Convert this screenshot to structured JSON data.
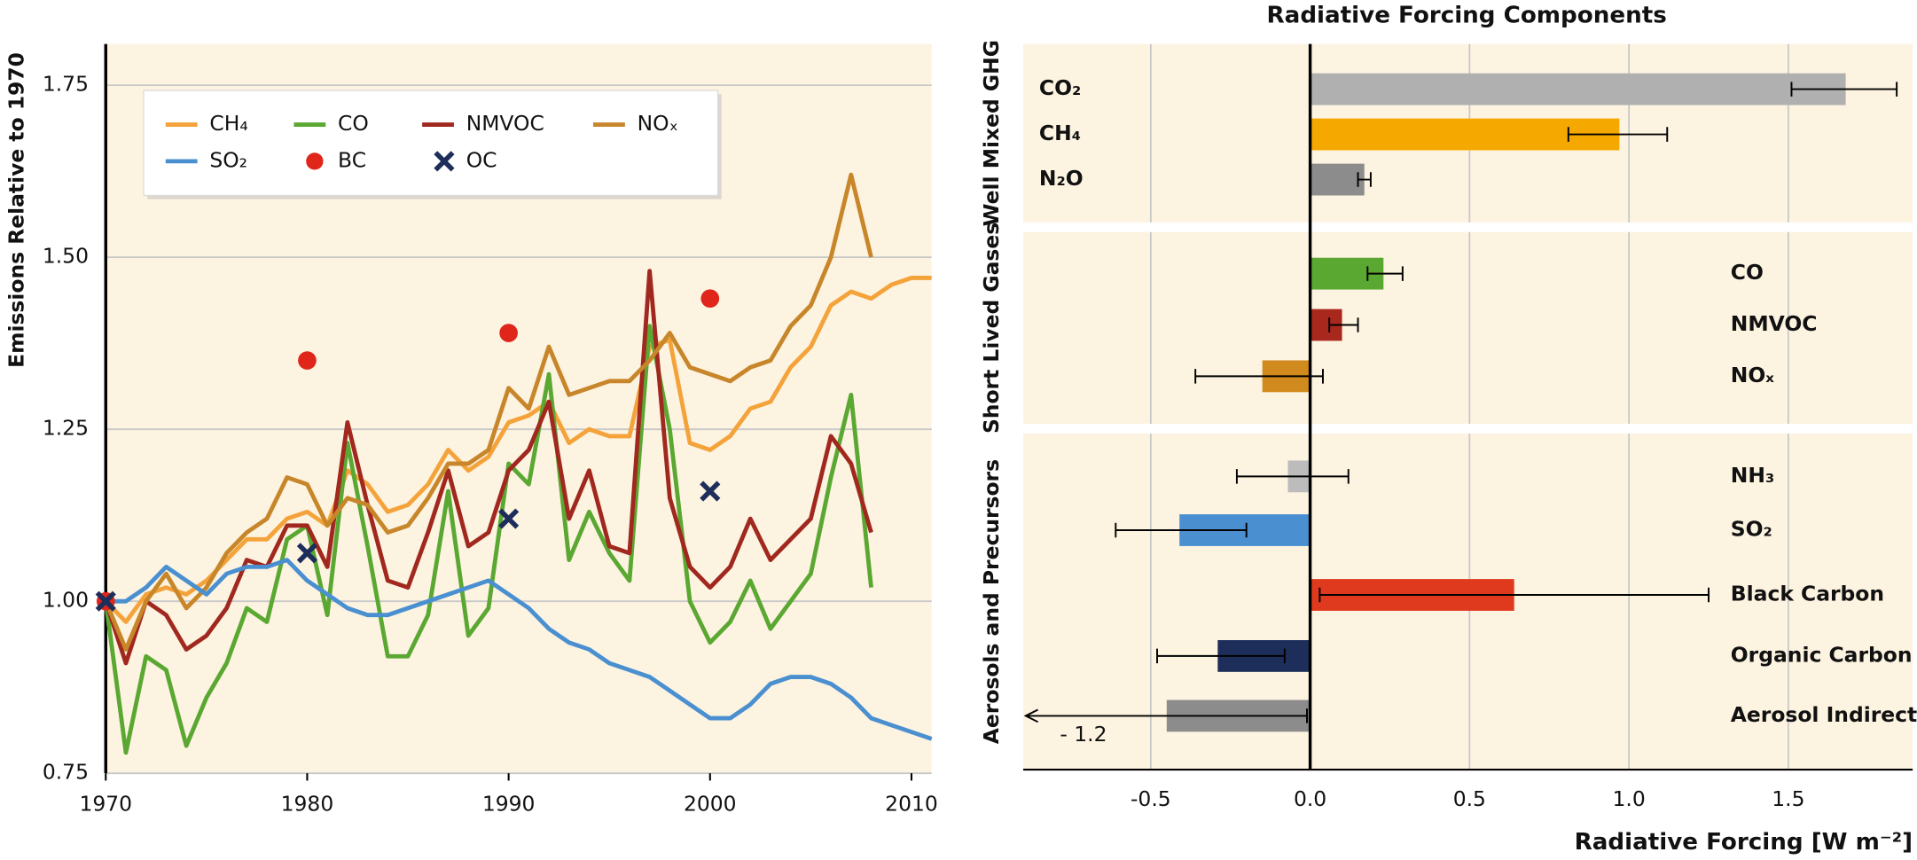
{
  "chart_data": [
    {
      "type": "line",
      "ylabel": "Emissions Relative to 1970",
      "x": [
        1970,
        1971,
        1972,
        1973,
        1974,
        1975,
        1976,
        1977,
        1978,
        1979,
        1980,
        1981,
        1982,
        1983,
        1984,
        1985,
        1986,
        1987,
        1988,
        1989,
        1990,
        1991,
        1992,
        1993,
        1994,
        1995,
        1996,
        1997,
        1998,
        1999,
        2000,
        2001,
        2002,
        2003,
        2004,
        2005,
        2006,
        2007,
        2008,
        2009,
        2010,
        2011
      ],
      "xlim": [
        1970,
        2011
      ],
      "xticks": [
        1970,
        1980,
        1990,
        2000,
        2010
      ],
      "ylim": [
        0.75,
        1.81
      ],
      "yticks": [
        0.75,
        1.25,
        {
          "value": 1.0,
          "label": "1.00"
        },
        {
          "value": 1.5,
          "label": "1.50"
        },
        1.75
      ],
      "grid": true,
      "legend": "upper left",
      "series": [
        {
          "name": "CH₄",
          "color": "#f4a33a",
          "values": [
            1.0,
            0.97,
            1.01,
            1.02,
            1.01,
            1.03,
            1.06,
            1.09,
            1.09,
            1.12,
            1.13,
            1.11,
            1.19,
            1.17,
            1.13,
            1.14,
            1.17,
            1.22,
            1.19,
            1.21,
            1.26,
            1.27,
            1.29,
            1.23,
            1.25,
            1.24,
            1.24,
            1.37,
            1.38,
            1.23,
            1.22,
            1.24,
            1.28,
            1.29,
            1.34,
            1.37,
            1.43,
            1.45,
            1.44,
            1.46,
            1.47,
            1.47
          ]
        },
        {
          "name": "CO",
          "color": "#5aa832",
          "values": [
            1.0,
            0.78,
            0.92,
            0.9,
            0.79,
            0.86,
            0.91,
            0.99,
            0.97,
            1.09,
            1.11,
            0.98,
            1.23,
            1.08,
            0.92,
            0.92,
            0.98,
            1.16,
            0.95,
            0.99,
            1.2,
            1.17,
            1.33,
            1.06,
            1.13,
            1.07,
            1.03,
            1.4,
            1.25,
            1.0,
            0.94,
            0.97,
            1.03,
            0.96,
            1.0,
            1.04,
            1.18,
            1.3,
            1.02,
            null,
            null,
            null
          ]
        },
        {
          "name": "NMVOC",
          "color": "#a0281e",
          "values": [
            1.0,
            0.91,
            1.0,
            0.98,
            0.93,
            0.95,
            0.99,
            1.06,
            1.05,
            1.11,
            1.11,
            1.05,
            1.26,
            1.14,
            1.03,
            1.02,
            1.1,
            1.19,
            1.08,
            1.1,
            1.19,
            1.22,
            1.29,
            1.12,
            1.19,
            1.08,
            1.07,
            1.48,
            1.15,
            1.05,
            1.02,
            1.05,
            1.12,
            1.06,
            1.09,
            1.12,
            1.24,
            1.2,
            1.1,
            null,
            null,
            null
          ]
        },
        {
          "name": "NOₓ",
          "color": "#c8862a",
          "values": [
            1.0,
            0.93,
            1.0,
            1.04,
            0.99,
            1.02,
            1.07,
            1.1,
            1.12,
            1.18,
            1.17,
            1.11,
            1.15,
            1.14,
            1.1,
            1.11,
            1.15,
            1.2,
            1.2,
            1.22,
            1.31,
            1.28,
            1.37,
            1.3,
            1.31,
            1.32,
            1.32,
            1.35,
            1.39,
            1.34,
            1.33,
            1.32,
            1.34,
            1.35,
            1.4,
            1.43,
            1.5,
            1.62,
            1.5,
            null,
            null,
            null
          ]
        },
        {
          "name": "SO₂",
          "color": "#4a90d0",
          "values": [
            1.0,
            1.0,
            1.02,
            1.05,
            1.03,
            1.01,
            1.04,
            1.05,
            1.05,
            1.06,
            1.03,
            1.01,
            0.99,
            0.98,
            0.98,
            0.99,
            1.0,
            1.01,
            1.02,
            1.03,
            1.01,
            0.99,
            0.96,
            0.94,
            0.93,
            0.91,
            0.9,
            0.89,
            0.87,
            0.85,
            0.83,
            0.83,
            0.85,
            0.88,
            0.89,
            0.89,
            0.88,
            0.86,
            0.83,
            0.82,
            0.81,
            0.8
          ]
        },
        {
          "name": "BC",
          "color": "#e0251b",
          "marker": "circle",
          "x": [
            1970,
            1980,
            1990,
            2000
          ],
          "values": [
            1.0,
            1.35,
            1.39,
            1.44
          ]
        },
        {
          "name": "OC",
          "color": "#1e2e5a",
          "marker": "x",
          "x": [
            1970,
            1980,
            1990,
            2000
          ],
          "values": [
            1.0,
            1.07,
            1.12,
            1.16
          ]
        }
      ]
    },
    {
      "type": "hbar",
      "title": "Radiative Forcing Components",
      "xlabel": "Radiative Forcing [W m⁻²]",
      "xlim": [
        -0.9,
        1.89
      ],
      "xticks": [
        -0.5,
        {
          "value": 0,
          "label": "0.0"
        },
        0.5,
        {
          "value": 1.0,
          "label": "1.0"
        },
        1.5
      ],
      "annotation": "- 1.2",
      "groups": [
        {
          "name": "Well Mixed GHG",
          "categories": [
            "CO₂",
            "CH₄",
            "N₂O"
          ],
          "values": [
            1.68,
            0.97,
            0.17
          ],
          "low": [
            1.51,
            0.81,
            0.15
          ],
          "high": [
            1.84,
            1.12,
            0.19
          ],
          "colors": [
            "#b0b0b0",
            "#f5a800",
            "#8c8c8c"
          ]
        },
        {
          "name": "Short Lived Gases",
          "categories": [
            "CO",
            "NMVOC",
            "NOₓ"
          ],
          "values": [
            0.23,
            0.1,
            -0.15
          ],
          "low": [
            0.18,
            0.06,
            -0.36
          ],
          "high": [
            0.29,
            0.15,
            0.04
          ],
          "colors": [
            "#5aa832",
            "#a8281e",
            "#d08a1e"
          ]
        },
        {
          "name": "Aerosols and Precursors",
          "categories": [
            "NH₃",
            "SO₂",
            "Black Carbon",
            "Organic Carbon",
            "Aerosol Indirect"
          ],
          "values": [
            -0.07,
            -0.41,
            0.64,
            -0.29,
            -0.45
          ],
          "low": [
            -0.23,
            -0.61,
            0.03,
            -0.48,
            -1.2
          ],
          "high": [
            0.12,
            -0.2,
            1.25,
            -0.08,
            -0.01
          ],
          "colors": [
            "#bcbcbc",
            "#4a90d0",
            "#e03a1e",
            "#1e2e5a",
            "#8c8c8c"
          ]
        }
      ]
    }
  ]
}
